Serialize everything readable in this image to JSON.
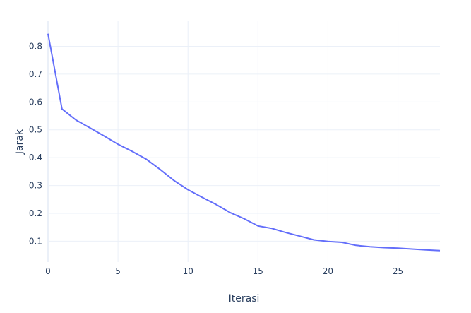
{
  "chart_data": {
    "type": "line",
    "xlabel": "Iterasi",
    "ylabel": "Jarak",
    "xlim": [
      0,
      28
    ],
    "ylim": [
      0.025,
      0.89
    ],
    "x_ticks": [
      0,
      5,
      10,
      15,
      20,
      25
    ],
    "y_ticks": [
      0.1,
      0.2,
      0.3,
      0.4,
      0.5,
      0.6,
      0.7,
      0.8
    ],
    "grid": true,
    "line_color": "#636efa",
    "series": [
      {
        "x": [
          0,
          1,
          2,
          3,
          4,
          5,
          6,
          7,
          8,
          9,
          10,
          11,
          12,
          13,
          14,
          15,
          16,
          17,
          18,
          19,
          20,
          21,
          22,
          23,
          24,
          25,
          26,
          27,
          28
        ],
        "values": [
          0.845,
          0.575,
          0.535,
          0.507,
          0.478,
          0.448,
          0.423,
          0.395,
          0.358,
          0.318,
          0.285,
          0.258,
          0.232,
          0.203,
          0.181,
          0.155,
          0.146,
          0.131,
          0.118,
          0.105,
          0.099,
          0.096,
          0.085,
          0.08,
          0.077,
          0.075,
          0.072,
          0.069,
          0.066
        ]
      }
    ]
  }
}
